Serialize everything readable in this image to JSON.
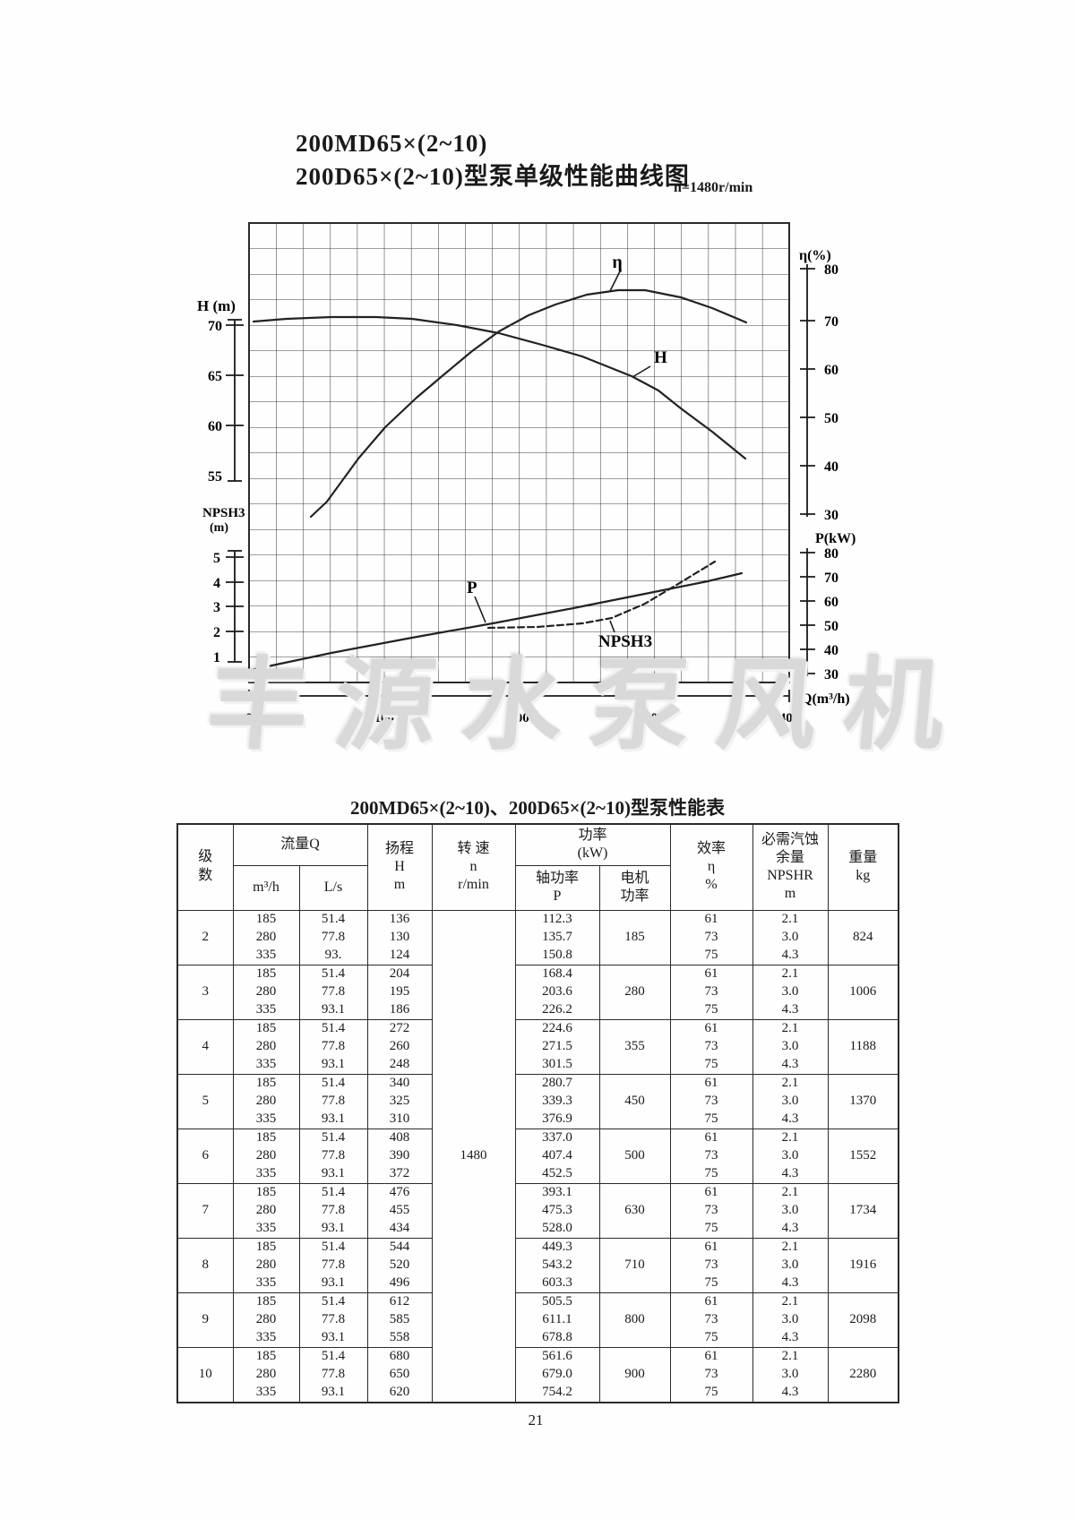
{
  "chart": {
    "title_line1": "200MD65×(2~10)",
    "title_line2": "200D65×(2~10)型泵单级性能曲线图",
    "speed_note": "n=1480r/min",
    "h_axis": {
      "label": "H (m)",
      "ticks": [
        "70",
        "65",
        "60",
        "55"
      ]
    },
    "npsh_axis": {
      "label_line1": "NPSH3",
      "label_line2": "(m)",
      "ticks": [
        "5",
        "4",
        "3",
        "2",
        "1"
      ]
    },
    "eta_axis": {
      "label": "η(%)",
      "ticks": [
        "80",
        "70",
        "60",
        "50",
        "40",
        "30"
      ]
    },
    "p_axis": {
      "label": "P(kW)",
      "ticks": [
        "80",
        "70",
        "60",
        "50",
        "40",
        "30"
      ]
    },
    "q_axis": {
      "label": "Q(m³/h)",
      "ticks": [
        "0",
        "100",
        "200",
        "300",
        "400"
      ]
    },
    "curve_labels": {
      "eta": "η",
      "h": "H",
      "p": "P",
      "npsh": "NPSH3"
    }
  },
  "chart_data": {
    "type": "line",
    "title": "200MD65×(2~10)、200D65×(2~10)型泵单级性能曲线图 n=1480r/min",
    "xlabel": "Q(m³/h)",
    "x_range": [
      0,
      400
    ],
    "grid": true,
    "series": [
      {
        "name": "H",
        "unit": "m",
        "axis_range": [
          55,
          70
        ],
        "points": [
          [
            3,
            70.4
          ],
          [
            48,
            70.7
          ],
          [
            94,
            70.7
          ],
          [
            121,
            70.6
          ],
          [
            185,
            69.2
          ],
          [
            247,
            66.9
          ],
          [
            283,
            65.0
          ],
          [
            320,
            61.8
          ],
          [
            367,
            56.8
          ]
        ]
      },
      {
        "name": "η",
        "unit": "%",
        "axis_range": [
          30,
          80
        ],
        "points": [
          [
            46,
            29
          ],
          [
            58,
            32
          ],
          [
            101,
            47
          ],
          [
            145,
            58
          ],
          [
            185,
            67
          ],
          [
            227,
            73
          ],
          [
            273,
            76
          ],
          [
            320,
            74
          ],
          [
            368,
            69
          ]
        ]
      },
      {
        "name": "P",
        "unit": "kW",
        "axis_range": [
          30,
          80
        ],
        "points": [
          [
            1,
            31
          ],
          [
            95,
            41
          ],
          [
            180,
            50
          ],
          [
            275,
            61
          ],
          [
            365,
            71
          ]
        ]
      },
      {
        "name": "NPSH3",
        "unit": "m",
        "axis_range": [
          1,
          5
        ],
        "points": [
          [
            177,
            2.1
          ],
          [
            227,
            2.2
          ],
          [
            269,
            2.5
          ],
          [
            293,
            3.1
          ],
          [
            318,
            3.9
          ],
          [
            345,
            4.8
          ]
        ]
      }
    ]
  },
  "watermark": {
    "text": "丰源水泵风机"
  },
  "table": {
    "title": "200MD65×(2~10)、200D65×(2~10)型泵性能表",
    "speed": "1480",
    "header": {
      "stage": "级数",
      "flow": "流量Q",
      "flow_m3h": "m³/h",
      "flow_ls": "L/s",
      "head_l1": "扬程",
      "head_l2": "H",
      "head_l3": "m",
      "speed_l1": "转  速",
      "speed_l2": "n",
      "speed_l3": "r/min",
      "power": "功率",
      "power_unit": "(kW)",
      "shaft_l1": "轴功率",
      "shaft_l2": "P",
      "motor_l1": "电机",
      "motor_l2": "功率",
      "eff_l1": "效率",
      "eff_l2": "η",
      "eff_l3": "%",
      "npsh_l1": "必需汽蚀",
      "npsh_l2": "余量",
      "npsh_l3": "NPSHR",
      "npsh_l4": "m",
      "weight_l1": "重量",
      "weight_l2": "kg"
    },
    "stages": [
      {
        "stage": "2",
        "q_m3h": [
          "185",
          "280",
          "335"
        ],
        "q_ls": [
          "51.4",
          "77.8",
          "93."
        ],
        "head": [
          "136",
          "130",
          "124"
        ],
        "shaft_power": [
          "112.3",
          "135.7",
          "150.8"
        ],
        "motor_power": "185",
        "eff": [
          "61",
          "73",
          "75"
        ],
        "npshr": [
          "2.1",
          "3.0",
          "4.3"
        ],
        "weight": "824"
      },
      {
        "stage": "3",
        "q_m3h": [
          "185",
          "280",
          "335"
        ],
        "q_ls": [
          "51.4",
          "77.8",
          "93.1"
        ],
        "head": [
          "204",
          "195",
          "186"
        ],
        "shaft_power": [
          "168.4",
          "203.6",
          "226.2"
        ],
        "motor_power": "280",
        "eff": [
          "61",
          "73",
          "75"
        ],
        "npshr": [
          "2.1",
          "3.0",
          "4.3"
        ],
        "weight": "1006"
      },
      {
        "stage": "4",
        "q_m3h": [
          "185",
          "280",
          "335"
        ],
        "q_ls": [
          "51.4",
          "77.8",
          "93.1"
        ],
        "head": [
          "272",
          "260",
          "248"
        ],
        "shaft_power": [
          "224.6",
          "271.5",
          "301.5"
        ],
        "motor_power": "355",
        "eff": [
          "61",
          "73",
          "75"
        ],
        "npshr": [
          "2.1",
          "3.0",
          "4.3"
        ],
        "weight": "1188"
      },
      {
        "stage": "5",
        "q_m3h": [
          "185",
          "280",
          "335"
        ],
        "q_ls": [
          "51.4",
          "77.8",
          "93.1"
        ],
        "head": [
          "340",
          "325",
          "310"
        ],
        "shaft_power": [
          "280.7",
          "339.3",
          "376.9"
        ],
        "motor_power": "450",
        "eff": [
          "61",
          "73",
          "75"
        ],
        "npshr": [
          "2.1",
          "3.0",
          "4.3"
        ],
        "weight": "1370"
      },
      {
        "stage": "6",
        "q_m3h": [
          "185",
          "280",
          "335"
        ],
        "q_ls": [
          "51.4",
          "77.8",
          "93.1"
        ],
        "head": [
          "408",
          "390",
          "372"
        ],
        "shaft_power": [
          "337.0",
          "407.4",
          "452.5"
        ],
        "motor_power": "500",
        "eff": [
          "61",
          "73",
          "75"
        ],
        "npshr": [
          "2.1",
          "3.0",
          "4.3"
        ],
        "weight": "1552"
      },
      {
        "stage": "7",
        "q_m3h": [
          "185",
          "280",
          "335"
        ],
        "q_ls": [
          "51.4",
          "77.8",
          "93.1"
        ],
        "head": [
          "476",
          "455",
          "434"
        ],
        "shaft_power": [
          "393.1",
          "475.3",
          "528.0"
        ],
        "motor_power": "630",
        "eff": [
          "61",
          "73",
          "75"
        ],
        "npshr": [
          "2.1",
          "3.0",
          "4.3"
        ],
        "weight": "1734"
      },
      {
        "stage": "8",
        "q_m3h": [
          "185",
          "280",
          "335"
        ],
        "q_ls": [
          "51.4",
          "77.8",
          "93.1"
        ],
        "head": [
          "544",
          "520",
          "496"
        ],
        "shaft_power": [
          "449.3",
          "543.2",
          "603.3"
        ],
        "motor_power": "710",
        "eff": [
          "61",
          "73",
          "75"
        ],
        "npshr": [
          "2.1",
          "3.0",
          "4.3"
        ],
        "weight": "1916"
      },
      {
        "stage": "9",
        "q_m3h": [
          "185",
          "280",
          "335"
        ],
        "q_ls": [
          "51.4",
          "77.8",
          "93.1"
        ],
        "head": [
          "612",
          "585",
          "558"
        ],
        "shaft_power": [
          "505.5",
          "611.1",
          "678.8"
        ],
        "motor_power": "800",
        "eff": [
          "61",
          "73",
          "75"
        ],
        "npshr": [
          "2.1",
          "3.0",
          "4.3"
        ],
        "weight": "2098"
      },
      {
        "stage": "10",
        "q_m3h": [
          "185",
          "280",
          "335"
        ],
        "q_ls": [
          "51.4",
          "77.8",
          "93.1"
        ],
        "head": [
          "680",
          "650",
          "620"
        ],
        "shaft_power": [
          "561.6",
          "679.0",
          "754.2"
        ],
        "motor_power": "900",
        "eff": [
          "61",
          "73",
          "75"
        ],
        "npshr": [
          "2.1",
          "3.0",
          "4.3"
        ],
        "weight": "2280"
      }
    ]
  },
  "page": {
    "number": "21"
  }
}
